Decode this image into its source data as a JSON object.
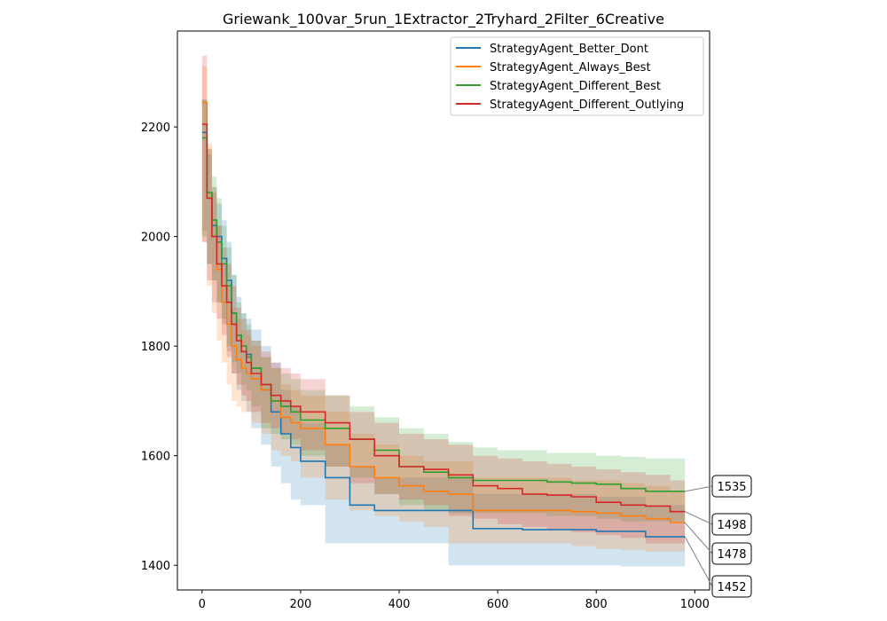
{
  "chart_data": {
    "type": "line",
    "title": "Griewank_100var_5run_1Extractor_2Tryhard_2Filter_6Creative",
    "xlabel": "",
    "ylabel": "",
    "xlim": [
      -50,
      1030
    ],
    "ylim": [
      1355,
      2375
    ],
    "x_ticks": [
      0,
      200,
      400,
      600,
      800,
      1000
    ],
    "y_ticks": [
      1400,
      1600,
      1800,
      2000,
      2200
    ],
    "grid": false,
    "legend_position": "top-right",
    "x": [
      0,
      10,
      20,
      30,
      40,
      50,
      60,
      70,
      80,
      90,
      100,
      120,
      140,
      160,
      180,
      200,
      250,
      300,
      350,
      400,
      450,
      500,
      550,
      600,
      650,
      700,
      750,
      800,
      850,
      900,
      950,
      980
    ],
    "series": [
      {
        "name": "StrategyAgent_Better_Dont",
        "color": "#1f77b4",
        "values": [
          2190,
          2080,
          2020,
          2000,
          1960,
          1920,
          1860,
          1820,
          1790,
          1785,
          1760,
          1720,
          1680,
          1640,
          1615,
          1590,
          1560,
          1510,
          1500,
          1500,
          1500,
          1500,
          1467,
          1467,
          1465,
          1465,
          1465,
          1462,
          1462,
          1452,
          1452,
          1452
        ],
        "lower": [
          2130,
          2010,
          1950,
          1920,
          1880,
          1840,
          1790,
          1750,
          1720,
          1700,
          1680,
          1650,
          1620,
          1580,
          1550,
          1520,
          1510,
          1440,
          1440,
          1440,
          1440,
          1440,
          1400,
          1400,
          1400,
          1400,
          1400,
          1400,
          1400,
          1398,
          1398,
          1398
        ],
        "upper": [
          2250,
          2150,
          2090,
          2060,
          2030,
          1990,
          1930,
          1890,
          1860,
          1850,
          1830,
          1800,
          1770,
          1720,
          1690,
          1660,
          1620,
          1580,
          1560,
          1560,
          1560,
          1560,
          1530,
          1530,
          1530,
          1530,
          1530,
          1525,
          1525,
          1510,
          1510,
          1510
        ]
      },
      {
        "name": "StrategyAgent_Always_Best",
        "color": "#ff7f0e",
        "values": [
          2245,
          2080,
          2000,
          1940,
          1880,
          1840,
          1800,
          1775,
          1760,
          1750,
          1740,
          1720,
          1700,
          1670,
          1660,
          1650,
          1620,
          1580,
          1560,
          1545,
          1535,
          1530,
          1500,
          1500,
          1500,
          1500,
          1498,
          1495,
          1490,
          1485,
          1478,
          1478
        ],
        "lower": [
          2180,
          1990,
          1910,
          1860,
          1810,
          1770,
          1730,
          1700,
          1690,
          1680,
          1680,
          1660,
          1640,
          1610,
          1600,
          1590,
          1560,
          1520,
          1500,
          1490,
          1480,
          1470,
          1440,
          1440,
          1440,
          1440,
          1440,
          1435,
          1430,
          1428,
          1425,
          1425
        ],
        "upper": [
          2310,
          2170,
          2090,
          2020,
          1950,
          1910,
          1870,
          1850,
          1830,
          1820,
          1800,
          1780,
          1760,
          1730,
          1720,
          1710,
          1680,
          1640,
          1620,
          1600,
          1590,
          1590,
          1560,
          1560,
          1560,
          1560,
          1555,
          1555,
          1550,
          1545,
          1535,
          1535
        ]
      },
      {
        "name": "StrategyAgent_Different_Best",
        "color": "#2ca02c",
        "values": [
          2180,
          2080,
          2030,
          1990,
          1950,
          1910,
          1860,
          1820,
          1800,
          1780,
          1760,
          1730,
          1700,
          1690,
          1680,
          1665,
          1650,
          1630,
          1610,
          1580,
          1570,
          1560,
          1555,
          1555,
          1555,
          1552,
          1550,
          1548,
          1540,
          1535,
          1535,
          1535
        ],
        "lower": [
          2110,
          2000,
          1950,
          1920,
          1880,
          1850,
          1800,
          1770,
          1750,
          1730,
          1720,
          1690,
          1650,
          1640,
          1630,
          1620,
          1600,
          1580,
          1560,
          1530,
          1510,
          1500,
          1495,
          1495,
          1495,
          1495,
          1490,
          1490,
          1485,
          1480,
          1480,
          1480
        ],
        "upper": [
          2250,
          2160,
          2110,
          2070,
          2020,
          1980,
          1930,
          1880,
          1860,
          1840,
          1810,
          1780,
          1760,
          1750,
          1740,
          1720,
          1710,
          1690,
          1670,
          1650,
          1640,
          1625,
          1615,
          1610,
          1610,
          1605,
          1605,
          1600,
          1598,
          1595,
          1595,
          1595
        ]
      },
      {
        "name": "StrategyAgent_Different_Outlying",
        "color": "#d62728",
        "values": [
          2205,
          2070,
          2000,
          1950,
          1910,
          1880,
          1840,
          1810,
          1790,
          1770,
          1750,
          1730,
          1710,
          1700,
          1690,
          1680,
          1660,
          1630,
          1600,
          1580,
          1575,
          1565,
          1545,
          1540,
          1530,
          1528,
          1525,
          1515,
          1510,
          1508,
          1498,
          1498
        ],
        "lower": [
          2140,
          1990,
          1920,
          1880,
          1850,
          1820,
          1780,
          1750,
          1730,
          1710,
          1700,
          1680,
          1660,
          1650,
          1640,
          1630,
          1610,
          1580,
          1550,
          1530,
          1520,
          1510,
          1490,
          1485,
          1475,
          1470,
          1465,
          1460,
          1455,
          1450,
          1440,
          1440
        ],
        "upper": [
          2330,
          2160,
          2080,
          2020,
          1980,
          1950,
          1910,
          1870,
          1850,
          1830,
          1810,
          1790,
          1770,
          1760,
          1750,
          1740,
          1710,
          1680,
          1660,
          1640,
          1630,
          1620,
          1600,
          1595,
          1590,
          1585,
          1580,
          1575,
          1570,
          1565,
          1555,
          1555
        ]
      }
    ],
    "end_labels": [
      {
        "text": "1535",
        "value": 1535
      },
      {
        "text": "1498",
        "value": 1498
      },
      {
        "text": "1478",
        "value": 1478
      },
      {
        "text": "1452",
        "value": 1452
      }
    ]
  }
}
